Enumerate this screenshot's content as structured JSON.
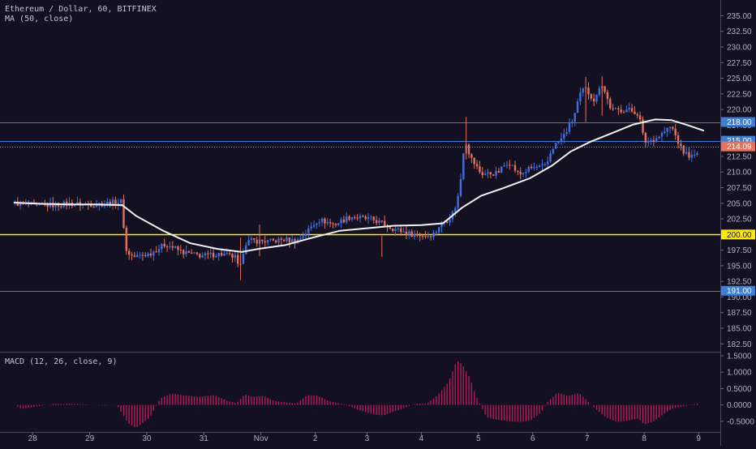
{
  "chart_data": {
    "type": "candlestick",
    "symbol_title": "Ethereum / Dollar, 60, BITFINEX",
    "ma_label": "MA (50, close)",
    "macd_label": "MACD (12, 26, close, 9)",
    "colors": {
      "background": "#131022",
      "up_candle": "#3f6fe0",
      "down_candle": "#e8705a",
      "ma_line": "#f2f2f2",
      "macd_hist": "#c2185b",
      "support_line": "#ffea00",
      "level_line": "#3d7fd6",
      "last_price_line": "#e8705a",
      "axis_text": "#b0b0c0"
    },
    "price_axis": {
      "min": 181.5,
      "max": 237.0,
      "ticks": [
        "182.50",
        "185.00",
        "187.50",
        "190.00",
        "192.50",
        "195.00",
        "197.50",
        "200.00",
        "202.50",
        "205.00",
        "207.50",
        "210.00",
        "212.50",
        "215.00",
        "217.50",
        "220.00",
        "222.50",
        "225.00",
        "227.50",
        "230.00",
        "232.50",
        "235.00"
      ]
    },
    "macd_axis": {
      "min": -0.8,
      "max": 1.55,
      "ticks": [
        "-0.5000",
        "0.0000",
        "0.5000",
        "1.0000",
        "1.5000"
      ]
    },
    "x_axis": {
      "labels": [
        {
          "t": 7,
          "label": "28"
        },
        {
          "t": 28,
          "label": "29"
        },
        {
          "t": 49,
          "label": "30"
        },
        {
          "t": 70,
          "label": "31"
        },
        {
          "t": 91,
          "label": "Nov"
        },
        {
          "t": 111,
          "label": "2"
        },
        {
          "t": 130,
          "label": "3"
        },
        {
          "t": 150,
          "label": "4"
        },
        {
          "t": 171,
          "label": "5"
        },
        {
          "t": 191,
          "label": "6"
        },
        {
          "t": 211,
          "label": "7"
        },
        {
          "t": 232,
          "label": "8"
        },
        {
          "t": 252,
          "label": "9"
        }
      ],
      "t_min": -5,
      "t_max": 260
    },
    "price_path": [
      [
        0,
        205.0
      ],
      [
        10,
        204.6
      ],
      [
        20,
        204.9
      ],
      [
        30,
        204.8
      ],
      [
        40,
        205.3
      ],
      [
        41,
        197.5
      ],
      [
        44,
        196.4
      ],
      [
        50,
        196.9
      ],
      [
        56,
        198.5
      ],
      [
        62,
        197.2
      ],
      [
        66,
        196.8
      ],
      [
        70,
        196.6
      ],
      [
        76,
        196.9
      ],
      [
        82,
        196.3
      ],
      [
        83,
        193.6
      ],
      [
        85,
        198.6
      ],
      [
        87,
        199.0
      ],
      [
        95,
        198.9
      ],
      [
        100,
        199.2
      ],
      [
        104,
        198.9
      ],
      [
        108,
        200.5
      ],
      [
        112,
        202.4
      ],
      [
        118,
        201.6
      ],
      [
        124,
        202.9
      ],
      [
        128,
        202.6
      ],
      [
        132,
        202.4
      ],
      [
        136,
        201.7
      ],
      [
        140,
        200.9
      ],
      [
        146,
        200.1
      ],
      [
        152,
        199.8
      ],
      [
        155,
        200.2
      ],
      [
        157,
        201.7
      ],
      [
        160,
        202.5
      ],
      [
        162,
        203.7
      ],
      [
        164,
        206.8
      ],
      [
        166,
        215.5
      ],
      [
        168,
        212.4
      ],
      [
        172,
        209.7
      ],
      [
        178,
        209.8
      ],
      [
        182,
        211.8
      ],
      [
        186,
        209.5
      ],
      [
        190,
        210.6
      ],
      [
        196,
        210.9
      ],
      [
        198,
        213.8
      ],
      [
        202,
        215.5
      ],
      [
        206,
        218.6
      ],
      [
        208,
        221.9
      ],
      [
        210,
        223.5
      ],
      [
        214,
        221.3
      ],
      [
        216,
        224.6
      ],
      [
        220,
        219.8
      ],
      [
        226,
        220.0
      ],
      [
        230,
        219.3
      ],
      [
        232,
        214.8
      ],
      [
        236,
        215.3
      ],
      [
        242,
        217.3
      ],
      [
        246,
        213.3
      ],
      [
        250,
        212.3
      ],
      [
        254,
        214.3
      ],
      [
        258,
        214.1
      ]
    ],
    "ma_path": [
      [
        0,
        205.1
      ],
      [
        10,
        204.9
      ],
      [
        20,
        204.8
      ],
      [
        30,
        204.8
      ],
      [
        40,
        204.7
      ],
      [
        45,
        203.0
      ],
      [
        55,
        200.6
      ],
      [
        65,
        198.6
      ],
      [
        75,
        197.7
      ],
      [
        84,
        197.2
      ],
      [
        90,
        197.7
      ],
      [
        100,
        198.3
      ],
      [
        110,
        199.5
      ],
      [
        120,
        200.6
      ],
      [
        130,
        201.0
      ],
      [
        140,
        201.4
      ],
      [
        150,
        201.5
      ],
      [
        158,
        201.8
      ],
      [
        165,
        204.3
      ],
      [
        172,
        206.2
      ],
      [
        180,
        207.4
      ],
      [
        190,
        209.0
      ],
      [
        198,
        211.0
      ],
      [
        205,
        213.3
      ],
      [
        212,
        214.8
      ],
      [
        220,
        216.2
      ],
      [
        228,
        217.6
      ],
      [
        236,
        218.4
      ],
      [
        242,
        218.3
      ],
      [
        248,
        217.5
      ],
      [
        254,
        216.6
      ]
    ],
    "macd_path": [
      [
        0,
        0.02
      ],
      [
        3,
        -0.12
      ],
      [
        8,
        -0.05
      ],
      [
        15,
        0.03
      ],
      [
        22,
        0.04
      ],
      [
        28,
        0.01
      ],
      [
        33,
        -0.02
      ],
      [
        38,
        0.0
      ],
      [
        42,
        -0.55
      ],
      [
        45,
        -0.7
      ],
      [
        50,
        -0.4
      ],
      [
        54,
        0.2
      ],
      [
        58,
        0.35
      ],
      [
        62,
        0.3
      ],
      [
        68,
        0.25
      ],
      [
        74,
        0.3
      ],
      [
        78,
        0.15
      ],
      [
        82,
        0.05
      ],
      [
        85,
        0.32
      ],
      [
        88,
        0.25
      ],
      [
        92,
        0.28
      ],
      [
        96,
        0.12
      ],
      [
        100,
        0.08
      ],
      [
        104,
        0.04
      ],
      [
        108,
        0.3
      ],
      [
        112,
        0.28
      ],
      [
        116,
        0.12
      ],
      [
        120,
        0.05
      ],
      [
        124,
        -0.05
      ],
      [
        128,
        -0.18
      ],
      [
        132,
        -0.28
      ],
      [
        136,
        -0.32
      ],
      [
        140,
        -0.2
      ],
      [
        144,
        -0.08
      ],
      [
        148,
        0.04
      ],
      [
        152,
        0.04
      ],
      [
        156,
        0.3
      ],
      [
        160,
        0.7
      ],
      [
        163,
        1.35
      ],
      [
        165,
        1.25
      ],
      [
        168,
        0.8
      ],
      [
        170,
        0.3
      ],
      [
        174,
        -0.38
      ],
      [
        178,
        -0.45
      ],
      [
        182,
        -0.5
      ],
      [
        186,
        -0.52
      ],
      [
        190,
        -0.48
      ],
      [
        194,
        -0.24
      ],
      [
        196,
        0.05
      ],
      [
        200,
        0.38
      ],
      [
        204,
        0.28
      ],
      [
        208,
        0.36
      ],
      [
        210,
        0.22
      ],
      [
        214,
        -0.12
      ],
      [
        218,
        -0.38
      ],
      [
        222,
        -0.52
      ],
      [
        226,
        -0.48
      ],
      [
        228,
        -0.44
      ],
      [
        230,
        -0.42
      ],
      [
        232,
        -0.6
      ],
      [
        236,
        -0.48
      ],
      [
        238,
        -0.35
      ],
      [
        242,
        -0.12
      ],
      [
        246,
        -0.05
      ],
      [
        250,
        0.02
      ],
      [
        254,
        0.08
      ],
      [
        257,
        0.15
      ]
    ],
    "horizontal_levels": [
      {
        "price": 218.0,
        "label": "218.00",
        "style": "level"
      },
      {
        "price": 215.0,
        "label": "215.00",
        "style": "level"
      },
      {
        "price": 200.0,
        "label": "200.00",
        "style": "support"
      },
      {
        "price": 191.0,
        "label": "191.00",
        "style": "level"
      }
    ],
    "last_price": {
      "price": 214.09,
      "label": "214.09"
    }
  }
}
